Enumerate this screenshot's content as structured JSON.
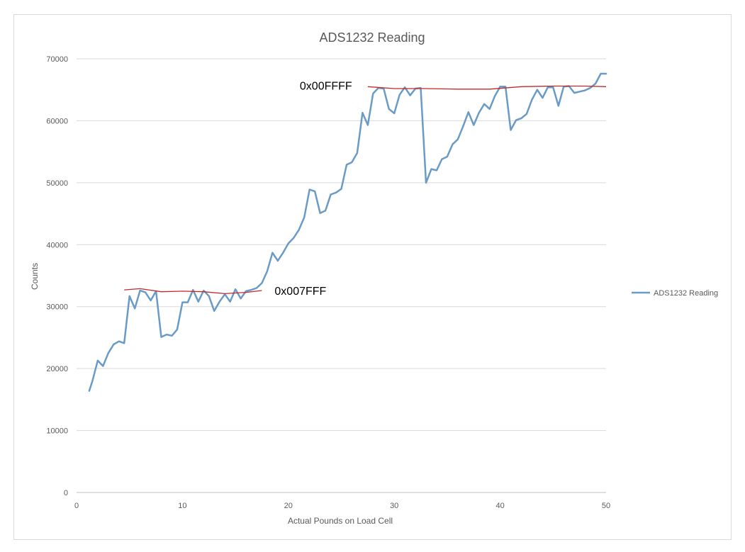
{
  "chart_data": {
    "type": "line",
    "title": "ADS1232 Reading",
    "xlabel": "Actual Pounds on Load Cell",
    "ylabel": "Counts",
    "xlim": [
      0,
      50
    ],
    "ylim": [
      0,
      70000
    ],
    "x_ticks": [
      0,
      10,
      20,
      30,
      40,
      50
    ],
    "y_ticks": [
      0,
      10000,
      20000,
      30000,
      40000,
      50000,
      60000,
      70000
    ],
    "grid": "horizontal",
    "legend_position": "right",
    "series": [
      {
        "name": "ADS1232 Reading",
        "color": "#6a9bc7",
        "x": [
          1.2,
          1.5,
          2.0,
          2.5,
          3.0,
          3.5,
          4.0,
          4.5,
          5.0,
          5.5,
          6.0,
          6.5,
          7.0,
          7.5,
          8.0,
          8.5,
          9.0,
          9.5,
          10.0,
          10.5,
          11.0,
          11.5,
          12.0,
          12.5,
          13.0,
          13.5,
          14.0,
          14.5,
          15.0,
          15.5,
          16.0,
          16.5,
          17.0,
          17.5,
          18.0,
          18.5,
          19.0,
          19.5,
          20.0,
          20.5,
          21.0,
          21.5,
          22.0,
          22.5,
          23.0,
          23.5,
          24.0,
          24.5,
          25.0,
          25.5,
          26.0,
          26.5,
          27.0,
          27.5,
          28.0,
          28.5,
          29.0,
          29.5,
          30.0,
          30.5,
          31.0,
          31.5,
          32.0,
          32.5,
          33.0,
          33.5,
          34.0,
          34.5,
          35.0,
          35.5,
          36.0,
          36.5,
          37.0,
          37.5,
          38.0,
          38.5,
          39.0,
          39.5,
          40.0,
          40.5,
          41.0,
          41.5,
          42.0,
          42.5,
          43.0,
          43.5,
          44.0,
          44.5,
          45.0,
          45.5,
          46.0,
          46.5,
          47.0,
          47.5,
          48.0,
          48.5,
          49.0,
          49.5,
          50.0
        ],
        "y": [
          16400,
          18000,
          21300,
          20400,
          22500,
          23900,
          24400,
          24100,
          31700,
          29700,
          32600,
          32300,
          31000,
          32500,
          25100,
          25500,
          25300,
          26300,
          30700,
          30700,
          32700,
          30800,
          32600,
          31700,
          29300,
          30800,
          32000,
          30800,
          32800,
          31300,
          32500,
          32700,
          33000,
          33800,
          35700,
          38700,
          37400,
          38700,
          40200,
          41100,
          42400,
          44400,
          48900,
          48600,
          45100,
          45500,
          48100,
          48400,
          49000,
          52900,
          53300,
          54800,
          61300,
          59300,
          64400,
          65300,
          65200,
          61900,
          61200,
          64200,
          65400,
          64100,
          65200,
          65300,
          50000,
          52200,
          52000,
          53800,
          54200,
          56200,
          57000,
          59100,
          61400,
          59300,
          61300,
          62700,
          61900,
          64000,
          65500,
          65500,
          58500,
          60100,
          60400,
          61100,
          63400,
          65000,
          63700,
          65400,
          65400,
          62400,
          65500,
          65600,
          64500,
          64700,
          64900,
          65300,
          66000,
          67600,
          67600
        ]
      }
    ],
    "annotations": [
      {
        "text": "0x007FFF",
        "value": 32767,
        "line_color": "#c62828",
        "line_x": [
          4.5,
          6.0,
          8.0,
          10.0,
          12.0,
          14.0,
          16.0,
          17.5
        ],
        "line_y": [
          32700,
          32900,
          32400,
          32500,
          32400,
          32100,
          32300,
          32600
        ]
      },
      {
        "text": "0x00FFFF",
        "value": 65535,
        "line_color": "#c62828",
        "line_x": [
          27.5,
          30.0,
          33.0,
          36.0,
          39.0,
          42.0,
          45.0,
          48.0,
          50.0
        ],
        "line_y": [
          65500,
          65200,
          65200,
          65100,
          65100,
          65500,
          65600,
          65600,
          65500
        ]
      }
    ]
  }
}
